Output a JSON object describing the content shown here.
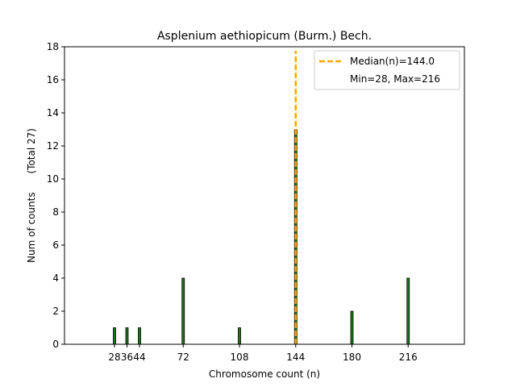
{
  "chart_data": {
    "type": "bar",
    "title": "Asplenium aethiopicum (Burm.) Bech.",
    "xlabel": "Chromosome count (n)",
    "ylabel": "Num of counts      (Total 27)",
    "xlim": [
      -4,
      252
    ],
    "ylim": [
      0,
      18
    ],
    "x_ticks": [
      28,
      36,
      44,
      72,
      108,
      144,
      180,
      216
    ],
    "x_tick_labels": [
      "28",
      "36",
      "44",
      "72",
      "108",
      "144",
      "180",
      "216"
    ],
    "y_ticks": [
      0,
      2,
      4,
      6,
      8,
      10,
      12,
      14,
      16,
      18
    ],
    "y_tick_labels": [
      "0",
      "2",
      "4",
      "6",
      "8",
      "10",
      "12",
      "14",
      "16",
      "18"
    ],
    "x": [
      28,
      36,
      44,
      72,
      108,
      144,
      180,
      216
    ],
    "values": [
      1,
      1,
      1,
      4,
      1,
      13,
      2,
      4
    ],
    "bar_color": "#1a7a1a",
    "bar_edge_color": "#000000",
    "median": 144.0,
    "median_color": "#ffa500",
    "grid": false,
    "legend": {
      "placement": "top-right",
      "entries": [
        "Median(n)=144.0",
        "Min=28, Max=216"
      ]
    }
  }
}
